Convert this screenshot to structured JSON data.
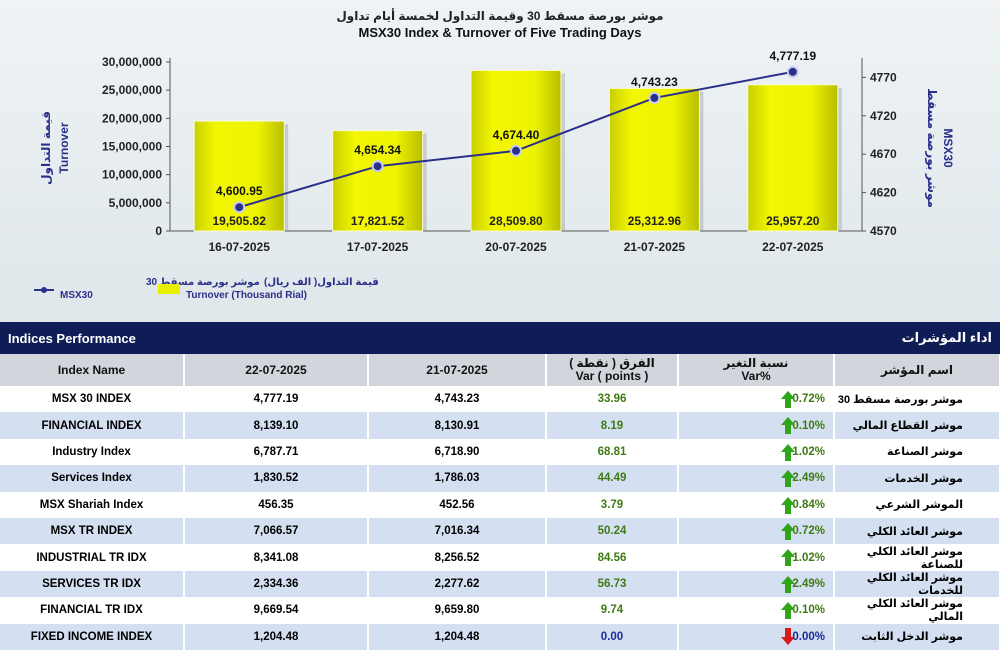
{
  "chart_data": {
    "type": "bar",
    "title_ar": "موشر بورصة مسقط 30 وقيمة التداول لخمسة أيام تداول",
    "title": "MSX30 Index & Turnover of Five Trading Days",
    "categories": [
      "16-07-2025",
      "17-07-2025",
      "20-07-2025",
      "21-07-2025",
      "22-07-2025"
    ],
    "ylabel_ar": "قيمة التداول",
    "ylabel": "Turnover",
    "y2label_ar": "موشر بورصة مسقط",
    "y2label": "MSX30",
    "ylim": [
      0,
      30000000
    ],
    "y2lim": [
      4570,
      4790
    ],
    "y_ticks": [
      "30,000,000",
      "25,000,000",
      "20,000,000",
      "15,000,000",
      "10,000,000",
      "5,000,000",
      "0"
    ],
    "y_tick_values": [
      30000000,
      25000000,
      20000000,
      15000000,
      10000000,
      5000000,
      0
    ],
    "y2_ticks": [
      "4770",
      "4720",
      "4670",
      "4620",
      "4570"
    ],
    "y2_tick_values": [
      4770,
      4720,
      4670,
      4620,
      4570
    ],
    "series": [
      {
        "name": "Turnover (Thousand Rial)",
        "name_ar": "قيمة التداول( الف ريال)",
        "type": "bar",
        "axis": "left",
        "color": "#e8f000",
        "values": [
          19505820,
          17821520,
          28509800,
          25312960,
          25957200
        ],
        "labels": [
          "19,505.82",
          "17,821.52",
          "28,509.80",
          "25,312.96",
          "25,957.20"
        ]
      },
      {
        "name": "MSX30",
        "name_ar": "موشر بورصة مسقط 30",
        "type": "line",
        "axis": "right",
        "color": "#2a2f8a",
        "values": [
          4600.95,
          4654.34,
          4674.4,
          4743.23,
          4777.19
        ],
        "labels": [
          "4,600.95",
          "4,654.34",
          "4,674.40",
          "4,743.23",
          "4,777.19"
        ]
      }
    ],
    "legend_position": "bottom-left",
    "grid": false
  },
  "table": {
    "title": "Indices Performance",
    "title_ar": "اداء المؤشرات",
    "headers": {
      "name": "Index Name",
      "d1": "22-07-2025",
      "d2": "21-07-2025",
      "var_ar": "الفرق ( نقطة )",
      "var": "Var ( points )",
      "pct_ar": "نسبة التغير",
      "pct": "Var%",
      "name_ar": "اسم المؤشر"
    },
    "rows": [
      {
        "name": "MSX 30 INDEX",
        "d1": "4,777.19",
        "d2": "4,743.23",
        "var": "33.96",
        "pct": "0.72%",
        "dir": "up",
        "name_ar": "موشر بورصة مسقط 30"
      },
      {
        "name": "FINANCIAL INDEX",
        "d1": "8,139.10",
        "d2": "8,130.91",
        "var": "8.19",
        "pct": "0.10%",
        "dir": "up",
        "name_ar": "موشر القطاع المالي"
      },
      {
        "name": "Industry Index",
        "d1": "6,787.71",
        "d2": "6,718.90",
        "var": "68.81",
        "pct": "1.02%",
        "dir": "up",
        "name_ar": "موشر الصناعة"
      },
      {
        "name": "Services Index",
        "d1": "1,830.52",
        "d2": "1,786.03",
        "var": "44.49",
        "pct": "2.49%",
        "dir": "up",
        "name_ar": "موشر الخدمات"
      },
      {
        "name": "MSX Shariah Index",
        "d1": "456.35",
        "d2": "452.56",
        "var": "3.79",
        "pct": "0.84%",
        "dir": "up",
        "name_ar": "الموشر الشرعي"
      },
      {
        "name": "MSX TR INDEX",
        "d1": "7,066.57",
        "d2": "7,016.34",
        "var": "50.24",
        "pct": "0.72%",
        "dir": "up",
        "name_ar": "موشر العائد الكلي"
      },
      {
        "name": "INDUSTRIAL TR IDX",
        "d1": "8,341.08",
        "d2": "8,256.52",
        "var": "84.56",
        "pct": "1.02%",
        "dir": "up",
        "name_ar": "موشر العائد الكلي للصناعة"
      },
      {
        "name": "SERVICES TR IDX",
        "d1": "2,334.36",
        "d2": "2,277.62",
        "var": "56.73",
        "pct": "2.49%",
        "dir": "up",
        "name_ar": "موشر العائد الكلي للخدمات"
      },
      {
        "name": "FINANCIAL TR IDX",
        "d1": "9,669.54",
        "d2": "9,659.80",
        "var": "9.74",
        "pct": "0.10%",
        "dir": "up",
        "name_ar": "موشر العائد الكلي المالي"
      },
      {
        "name": "FIXED INCOME INDEX",
        "d1": "1,204.48",
        "d2": "1,204.48",
        "var": "0.00",
        "pct": "0.00%",
        "dir": "down",
        "name_ar": "موشر الدخل الثابت"
      }
    ]
  }
}
